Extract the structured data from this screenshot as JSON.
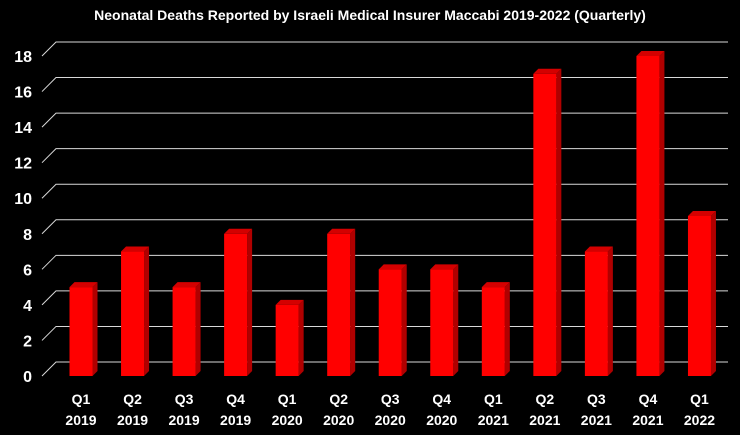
{
  "chart_data": {
    "type": "bar",
    "title": "Neonatal Deaths Reported by Israeli Medical Insurer Maccabi 2019-2022 (Quarterly)",
    "xlabel": "",
    "ylabel": "",
    "categories": [
      [
        "Q1",
        "2019"
      ],
      [
        "Q2",
        "2019"
      ],
      [
        "Q3",
        "2019"
      ],
      [
        "Q4",
        "2019"
      ],
      [
        "Q1",
        "2020"
      ],
      [
        "Q2",
        "2020"
      ],
      [
        "Q3",
        "2020"
      ],
      [
        "Q4",
        "2020"
      ],
      [
        "Q1",
        "2021"
      ],
      [
        "Q2",
        "2021"
      ],
      [
        "Q3",
        "2021"
      ],
      [
        "Q4",
        "2021"
      ],
      [
        "Q1",
        "2022"
      ]
    ],
    "values": [
      5,
      7,
      5,
      8,
      4,
      8,
      6,
      6,
      5,
      17,
      7,
      18,
      9
    ],
    "ylim": [
      0,
      18
    ],
    "yticks": [
      0,
      2,
      4,
      6,
      8,
      10,
      12,
      14,
      16,
      18
    ],
    "grid": true,
    "legend": "none",
    "colors": {
      "bar": "#ff0000",
      "bar_side": "#b00000",
      "bar_top": "#d40000",
      "grid": "#d9d9d9",
      "text": "#ffffff",
      "background": "#000000"
    }
  }
}
